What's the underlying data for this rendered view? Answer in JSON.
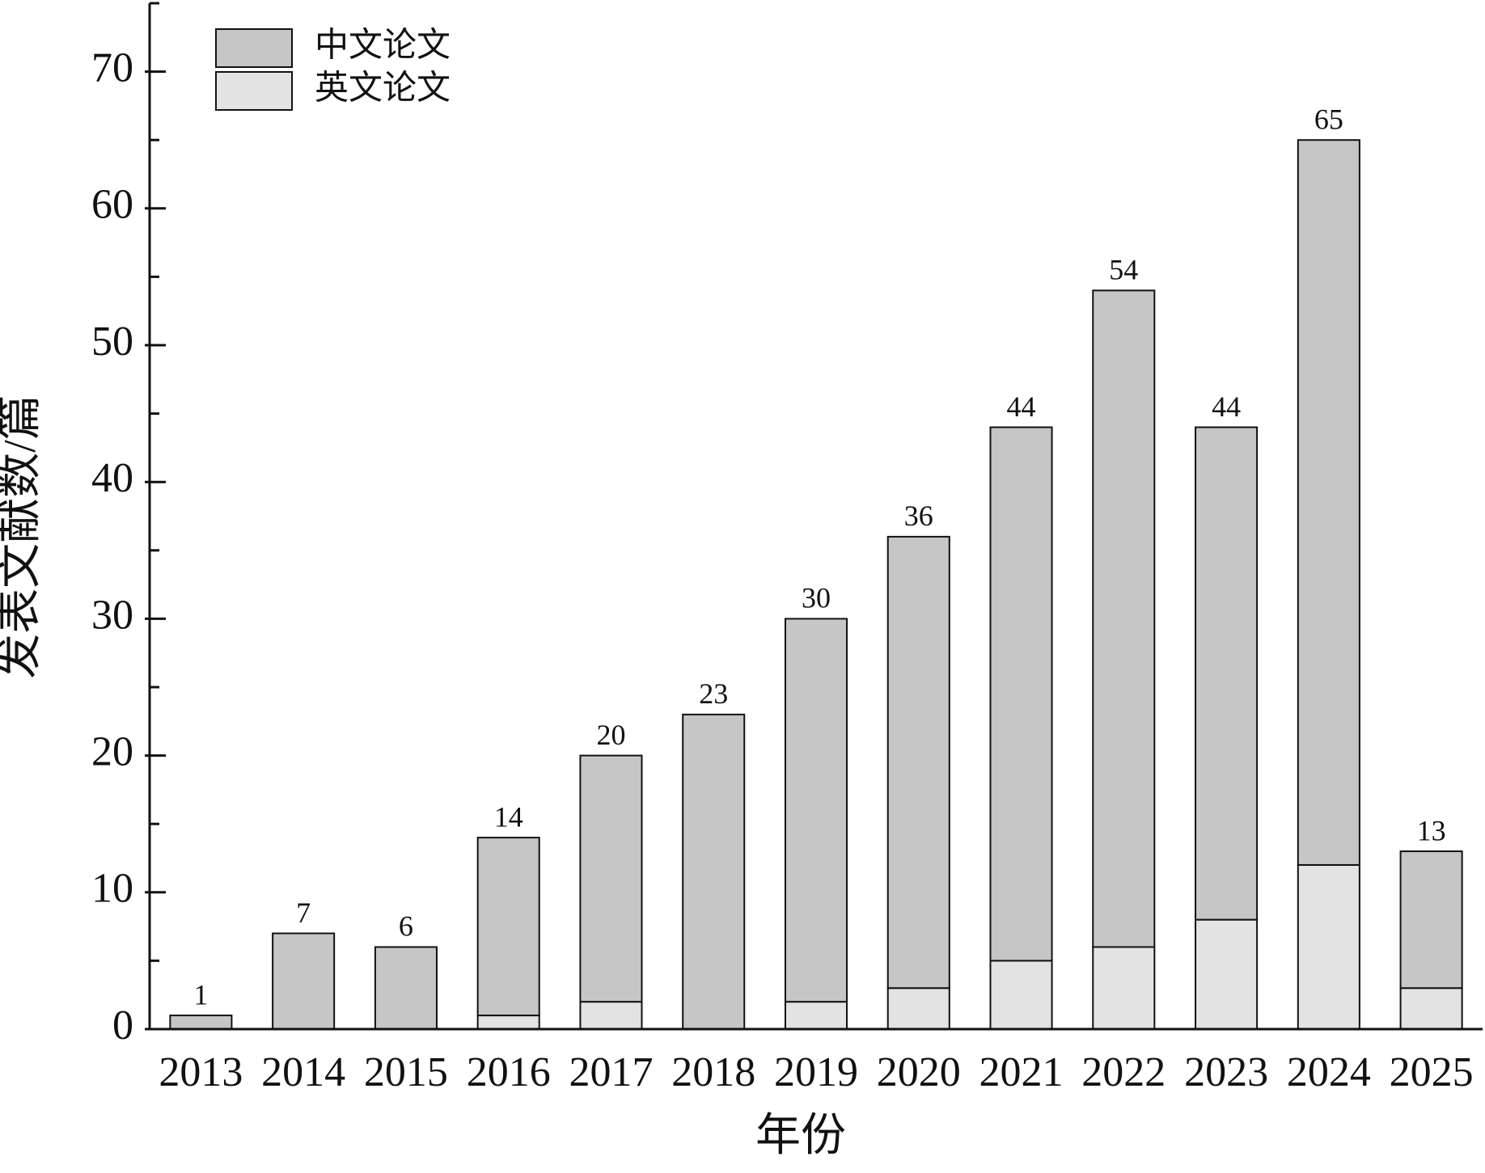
{
  "chart_data": {
    "type": "stacked-bar",
    "xlabel": "年份",
    "ylabel": "发表文献数/篇",
    "categories": [
      "2013",
      "2014",
      "2015",
      "2016",
      "2017",
      "2018",
      "2019",
      "2020",
      "2021",
      "2022",
      "2023",
      "2024",
      "2025"
    ],
    "series": [
      {
        "name": "英文论文",
        "color": "#e3e3e3",
        "values": [
          0,
          0,
          0,
          1,
          2,
          0,
          2,
          3,
          5,
          6,
          8,
          12,
          3
        ]
      },
      {
        "name": "中文论文",
        "color": "#c6c6c6",
        "values": [
          1,
          7,
          6,
          13,
          18,
          23,
          28,
          33,
          39,
          48,
          36,
          53,
          10
        ]
      }
    ],
    "totals": [
      1,
      7,
      6,
      14,
      20,
      23,
      30,
      36,
      44,
      54,
      44,
      65,
      13
    ],
    "ylim": [
      0,
      75
    ],
    "yticks": [
      0,
      10,
      20,
      30,
      40,
      50,
      60,
      70
    ],
    "yminorticks": [
      5,
      15,
      25,
      35,
      45,
      55,
      65,
      75
    ],
    "legend": "upper left"
  }
}
